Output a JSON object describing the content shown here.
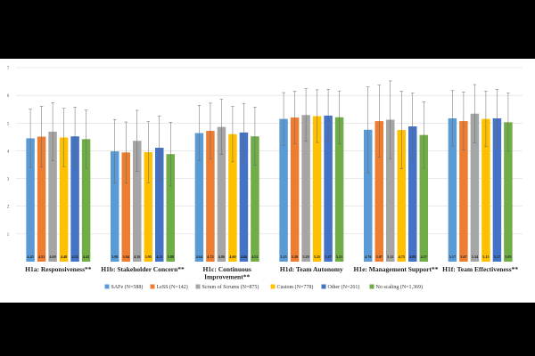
{
  "chart_data": {
    "type": "bar",
    "ylim": [
      0,
      7
    ],
    "yticks": [
      1,
      2,
      3,
      4,
      5,
      6,
      7
    ],
    "grid": true,
    "legend_position": "bottom",
    "categories": [
      [
        "H1a: Responsiveness**"
      ],
      [
        "H1b: Stakeholder Concern**"
      ],
      [
        "H1c: Continuous",
        "Improvement**"
      ],
      [
        "H1d: Team Autonomy"
      ],
      [
        "H1e: Management Support**"
      ],
      [
        "H1f: Team Effectiveness**"
      ]
    ],
    "series": [
      {
        "name": "SAFe (N=588)",
        "color": "#5b9bd5",
        "values": [
          4.45,
          3.98,
          4.64,
          5.15,
          4.76,
          5.17
        ],
        "errors": [
          1.05,
          1.15,
          1.0,
          0.95,
          1.55,
          1.0
        ],
        "labels": [
          "4.45",
          "3.98",
          "4.64",
          "5.15",
          "4.76",
          "5.17"
        ]
      },
      {
        "name": "LeSS (N=142)",
        "color": "#ed7d31",
        "values": [
          4.51,
          3.94,
          4.72,
          5.2,
          5.07,
          5.07
        ],
        "errors": [
          1.1,
          1.1,
          1.0,
          0.95,
          1.3,
          1.05
        ],
        "labels": [
          "4.51",
          "3.94",
          "4.72",
          "5.20",
          "5.07",
          "5.07"
        ]
      },
      {
        "name": "Scrum of Scrums (N=875)",
        "color": "#a5a5a5",
        "values": [
          4.69,
          4.36,
          4.86,
          5.29,
          5.12,
          5.34
        ],
        "errors": [
          1.05,
          1.1,
          1.0,
          0.95,
          1.4,
          1.05
        ],
        "labels": [
          "4.69",
          "4.36",
          "4.86",
          "5.29",
          "5.12",
          "5.34"
        ]
      },
      {
        "name": "Custom (N=778)",
        "color": "#ffc000",
        "values": [
          4.48,
          3.95,
          4.6,
          5.25,
          4.75,
          5.15
        ],
        "errors": [
          1.05,
          1.1,
          1.0,
          0.95,
          1.4,
          1.0
        ],
        "labels": [
          "4.48",
          "3.95",
          "4.60",
          "5.25",
          "4.75",
          "5.15"
        ]
      },
      {
        "name": "Other (N=261)",
        "color": "#4472c4",
        "values": [
          4.52,
          4.11,
          4.66,
          5.27,
          4.88,
          5.17
        ],
        "errors": [
          1.05,
          1.15,
          1.05,
          0.95,
          1.2,
          1.05
        ],
        "labels": [
          "4.52",
          "4.11",
          "4.66",
          "5.27",
          "4.88",
          "5.17"
        ]
      },
      {
        "name": "No scaling (N=1,369)",
        "color": "#70ad47",
        "values": [
          4.42,
          3.88,
          4.52,
          5.21,
          4.57,
          5.03
        ],
        "errors": [
          1.05,
          1.15,
          1.05,
          0.95,
          1.2,
          1.05
        ],
        "labels": [
          "4.42",
          "3.88",
          "4.52",
          "5.21",
          "4.57",
          "5.03"
        ]
      }
    ]
  }
}
